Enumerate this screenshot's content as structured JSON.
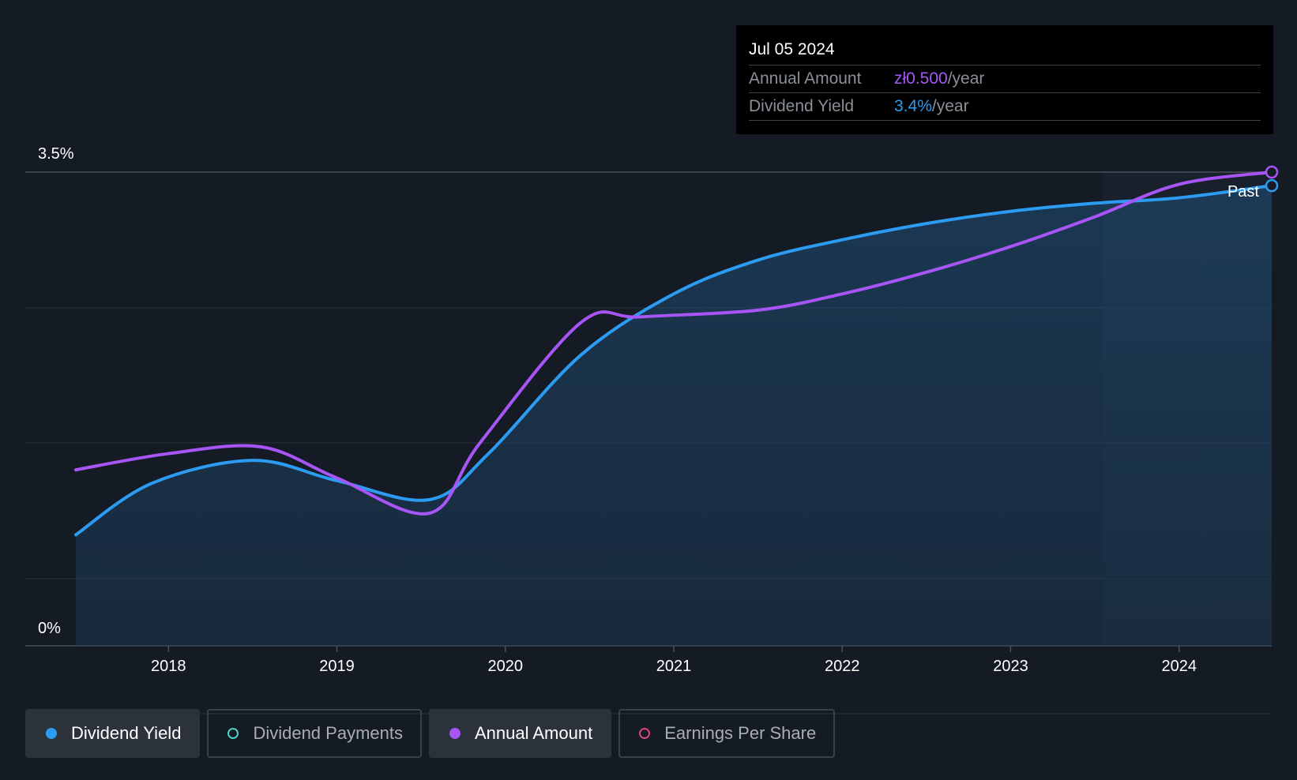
{
  "tooltip": {
    "date": "Jul 05 2024",
    "rows": [
      {
        "label": "Annual Amount",
        "value": "zł0.500",
        "suffix": "/year"
      },
      {
        "label": "Dividend Yield",
        "value": "3.4%",
        "suffix": "/year"
      }
    ]
  },
  "legend": [
    {
      "label": "Dividend Yield",
      "active": true,
      "color": "#2b9cf2",
      "filled": true
    },
    {
      "label": "Dividend Payments",
      "active": false,
      "color": "#4fd1c5",
      "filled": false
    },
    {
      "label": "Annual Amount",
      "active": true,
      "color": "#a855f7",
      "filled": true
    },
    {
      "label": "Earnings Per Share",
      "active": false,
      "color": "#d6457f",
      "filled": false
    }
  ],
  "chart_data": {
    "type": "line",
    "title": "",
    "xlabel": "",
    "ylabel": "",
    "y_tick_labels": [
      "3.5%",
      "0%"
    ],
    "x_tick_labels": [
      "2018",
      "2019",
      "2020",
      "2021",
      "2022",
      "2023",
      "2024"
    ],
    "xlim": [
      2017.45,
      2024.55
    ],
    "ylim": [
      0,
      3.5
    ],
    "past_label": "Past",
    "forecast_start": 2023.55,
    "colors": {
      "yield": "#2b9cf2",
      "annual": "#a855f7"
    },
    "series": [
      {
        "key": "yield",
        "name": "Dividend Yield",
        "x": [
          2017.45,
          2017.9,
          2018.5,
          2019.0,
          2019.55,
          2019.9,
          2020.45,
          2021.0,
          2021.5,
          2022.0,
          2022.5,
          2023.0,
          2023.5,
          2024.0,
          2024.55
        ],
        "values": [
          0.82,
          1.2,
          1.37,
          1.22,
          1.08,
          1.42,
          2.15,
          2.6,
          2.85,
          3.0,
          3.12,
          3.21,
          3.27,
          3.31,
          3.4
        ]
      },
      {
        "key": "annual",
        "name": "Annual Amount",
        "x": [
          2017.45,
          2018.0,
          2018.55,
          2019.0,
          2019.55,
          2019.85,
          2020.45,
          2020.8,
          2021.5,
          2022.0,
          2022.5,
          2023.0,
          2023.5,
          2024.0,
          2024.55
        ],
        "values": [
          1.3,
          1.42,
          1.47,
          1.24,
          0.98,
          1.5,
          2.39,
          2.43,
          2.48,
          2.6,
          2.76,
          2.95,
          3.17,
          3.41,
          3.5
        ]
      }
    ]
  }
}
